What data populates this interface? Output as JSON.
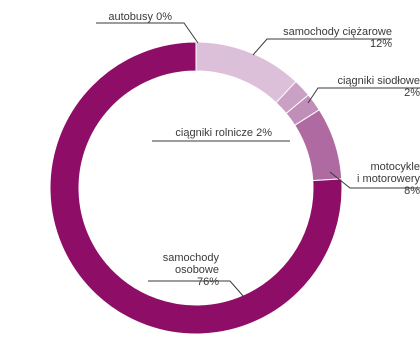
{
  "chart_data": {
    "type": "pie",
    "style": "donut",
    "start_angle_deg": 0,
    "direction": "clockwise",
    "slices": [
      {
        "key": "autobusy",
        "label": "autobusy 0%",
        "label_lines": [
          "autobusy 0%"
        ],
        "value": 0,
        "color": "#d0a6c9"
      },
      {
        "key": "ciezarowe",
        "label": "samochody ciężarowe 12%",
        "label_lines": [
          "samochody ciężarowe",
          "12%"
        ],
        "value": 12,
        "color": "#dcbfd9"
      },
      {
        "key": "siodlowe",
        "label": "ciągniki siodłowe 2%",
        "label_lines": [
          "ciągniki siodłowe",
          "2%"
        ],
        "value": 2,
        "color": "#caa0c5"
      },
      {
        "key": "rolnicze",
        "label": "ciągniki rolnicze 2%",
        "label_lines": [
          "ciągniki rolnicze 2%"
        ],
        "value": 2,
        "color": "#c18db9"
      },
      {
        "key": "motocykle",
        "label": "motocykle i motorowery 8%",
        "label_lines": [
          "motocykle",
          "i motorowery",
          "8%"
        ],
        "value": 8,
        "color": "#b06aa2"
      },
      {
        "key": "osobowe",
        "label": "samochody osobowe 76%",
        "label_lines": [
          "samochody",
          "osobowe",
          "76%"
        ],
        "value": 76,
        "color": "#8e0e67"
      }
    ]
  }
}
